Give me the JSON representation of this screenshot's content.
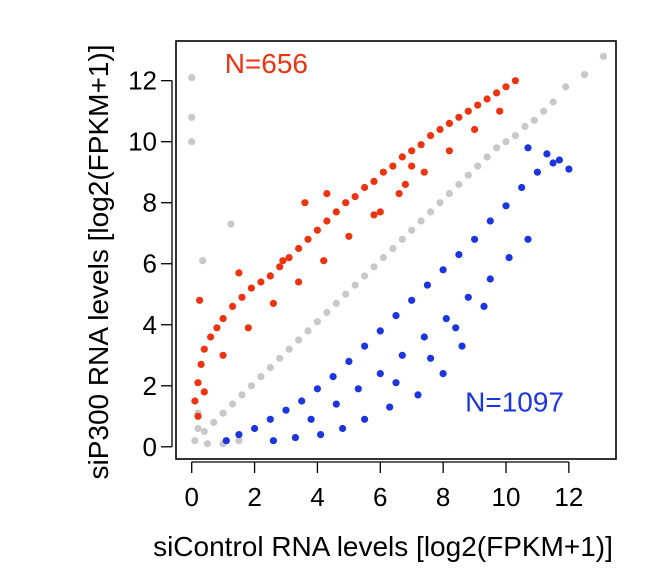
{
  "chart_data": {
    "type": "scatter",
    "title": "",
    "xlabel": "siControl RNA levels [log2(FPKM+1)]",
    "ylabel": "siP300 RNA levels [log2(FPKM+1)]",
    "xlim": [
      -0.5,
      13.5
    ],
    "ylim": [
      -0.4,
      13.3
    ],
    "xticks": [
      0,
      2,
      4,
      6,
      8,
      10,
      12
    ],
    "yticks": [
      0,
      2,
      4,
      6,
      8,
      10,
      12
    ],
    "grid": false,
    "annotations": [
      {
        "text": "N=656",
        "color": "#ee3311",
        "x": 1.05,
        "y": 12.25
      },
      {
        "text": "N=1097",
        "color": "#1b35e0",
        "x": 8.7,
        "y": 1.15
      }
    ],
    "series": [
      {
        "color": "#c8c8c8",
        "points": [
          [
            0,
            12.1
          ],
          [
            0,
            10.8
          ],
          [
            0,
            10.0
          ],
          [
            1.25,
            7.3
          ],
          [
            0.35,
            6.1
          ],
          [
            13.1,
            12.8
          ],
          [
            12.5,
            12.2
          ],
          [
            11.9,
            11.8
          ],
          [
            11.5,
            11.3
          ],
          [
            11.2,
            11.0
          ],
          [
            10.9,
            10.7
          ],
          [
            10.6,
            10.5
          ],
          [
            10.3,
            10.2
          ],
          [
            10.0,
            10.0
          ],
          [
            9.7,
            9.8
          ],
          [
            9.4,
            9.5
          ],
          [
            9.1,
            9.2
          ],
          [
            8.8,
            8.9
          ],
          [
            8.5,
            8.6
          ],
          [
            8.2,
            8.3
          ],
          [
            7.9,
            8.0
          ],
          [
            7.6,
            7.7
          ],
          [
            7.3,
            7.4
          ],
          [
            7.0,
            7.1
          ],
          [
            6.7,
            6.8
          ],
          [
            6.4,
            6.5
          ],
          [
            6.1,
            6.2
          ],
          [
            5.8,
            5.9
          ],
          [
            5.5,
            5.6
          ],
          [
            5.2,
            5.3
          ],
          [
            4.9,
            5.0
          ],
          [
            4.6,
            4.7
          ],
          [
            4.3,
            4.4
          ],
          [
            4.0,
            4.1
          ],
          [
            3.7,
            3.8
          ],
          [
            3.4,
            3.5
          ],
          [
            3.1,
            3.2
          ],
          [
            2.8,
            2.9
          ],
          [
            2.5,
            2.6
          ],
          [
            2.2,
            2.3
          ],
          [
            1.9,
            2.0
          ],
          [
            1.6,
            1.7
          ],
          [
            1.3,
            1.4
          ],
          [
            1.0,
            1.1
          ],
          [
            0.7,
            0.8
          ],
          [
            0.4,
            0.5
          ],
          [
            0.1,
            0.2
          ],
          [
            0.5,
            0.1
          ],
          [
            1.0,
            0.1
          ],
          [
            1.5,
            0.2
          ],
          [
            0.2,
            1.1
          ],
          [
            0.2,
            0.6
          ]
        ]
      },
      {
        "color": "#ee3311",
        "points": [
          [
            0.1,
            1.5
          ],
          [
            0.2,
            2.1
          ],
          [
            0.3,
            2.7
          ],
          [
            0.4,
            3.2
          ],
          [
            0.6,
            3.6
          ],
          [
            0.8,
            3.9
          ],
          [
            1.0,
            4.2
          ],
          [
            1.3,
            4.6
          ],
          [
            1.6,
            4.9
          ],
          [
            1.9,
            5.2
          ],
          [
            2.2,
            5.4
          ],
          [
            2.5,
            5.6
          ],
          [
            2.8,
            5.9
          ],
          [
            3.1,
            6.2
          ],
          [
            3.4,
            6.5
          ],
          [
            3.7,
            6.8
          ],
          [
            4.0,
            7.1
          ],
          [
            4.3,
            7.4
          ],
          [
            4.6,
            7.7
          ],
          [
            4.9,
            8.0
          ],
          [
            5.2,
            8.2
          ],
          [
            5.5,
            8.5
          ],
          [
            5.8,
            8.7
          ],
          [
            6.1,
            9.0
          ],
          [
            6.4,
            9.2
          ],
          [
            6.7,
            9.5
          ],
          [
            7.0,
            9.7
          ],
          [
            7.3,
            9.9
          ],
          [
            7.6,
            10.2
          ],
          [
            7.9,
            10.4
          ],
          [
            8.2,
            10.6
          ],
          [
            8.5,
            10.8
          ],
          [
            8.8,
            11.0
          ],
          [
            9.1,
            11.2
          ],
          [
            9.4,
            11.4
          ],
          [
            9.7,
            11.6
          ],
          [
            10.0,
            11.8
          ],
          [
            10.3,
            12.0
          ],
          [
            0.25,
            4.8
          ],
          [
            0.2,
            1.0
          ],
          [
            0.4,
            1.8
          ],
          [
            1.0,
            3.0
          ],
          [
            1.8,
            3.9
          ],
          [
            2.6,
            4.7
          ],
          [
            3.4,
            5.4
          ],
          [
            4.2,
            6.1
          ],
          [
            5.0,
            6.9
          ],
          [
            5.8,
            7.6
          ],
          [
            6.6,
            8.3
          ],
          [
            7.4,
            9.0
          ],
          [
            8.2,
            9.7
          ],
          [
            9.0,
            10.4
          ],
          [
            9.8,
            11.0
          ],
          [
            4.3,
            8.3
          ],
          [
            3.6,
            8.0
          ],
          [
            2.9,
            6.1
          ],
          [
            1.5,
            5.7
          ],
          [
            7.0,
            9.2
          ],
          [
            6.8,
            8.6
          ],
          [
            6.0,
            7.7
          ]
        ]
      },
      {
        "color": "#1b35e0",
        "points": [
          [
            1.1,
            0.2
          ],
          [
            1.5,
            0.4
          ],
          [
            2.0,
            0.6
          ],
          [
            2.5,
            0.9
          ],
          [
            3.0,
            1.2
          ],
          [
            3.5,
            1.5
          ],
          [
            4.0,
            1.9
          ],
          [
            4.5,
            2.3
          ],
          [
            5.0,
            2.8
          ],
          [
            5.5,
            3.3
          ],
          [
            6.0,
            3.8
          ],
          [
            6.5,
            4.3
          ],
          [
            7.0,
            4.8
          ],
          [
            7.5,
            5.3
          ],
          [
            8.0,
            5.8
          ],
          [
            8.5,
            6.3
          ],
          [
            9.0,
            6.8
          ],
          [
            9.5,
            7.4
          ],
          [
            10.0,
            7.9
          ],
          [
            10.5,
            8.5
          ],
          [
            11.0,
            9.0
          ],
          [
            11.5,
            9.3
          ],
          [
            12.0,
            9.1
          ],
          [
            11.7,
            9.4
          ],
          [
            11.3,
            9.6
          ],
          [
            10.7,
            9.8
          ],
          [
            2.6,
            0.2
          ],
          [
            3.3,
            0.3
          ],
          [
            4.1,
            0.4
          ],
          [
            4.8,
            0.6
          ],
          [
            5.5,
            0.9
          ],
          [
            6.3,
            1.3
          ],
          [
            7.2,
            1.7
          ],
          [
            8.0,
            2.4
          ],
          [
            3.8,
            0.9
          ],
          [
            4.6,
            1.4
          ],
          [
            5.3,
            1.9
          ],
          [
            6.0,
            2.4
          ],
          [
            6.7,
            3.0
          ],
          [
            7.4,
            3.6
          ],
          [
            8.1,
            4.2
          ],
          [
            8.8,
            4.9
          ],
          [
            9.5,
            5.5
          ],
          [
            10.1,
            6.2
          ],
          [
            10.7,
            6.8
          ],
          [
            8.4,
            3.9
          ],
          [
            8.6,
            3.3
          ],
          [
            7.6,
            2.9
          ],
          [
            6.5,
            2.1
          ],
          [
            9.3,
            4.6
          ]
        ]
      }
    ]
  }
}
